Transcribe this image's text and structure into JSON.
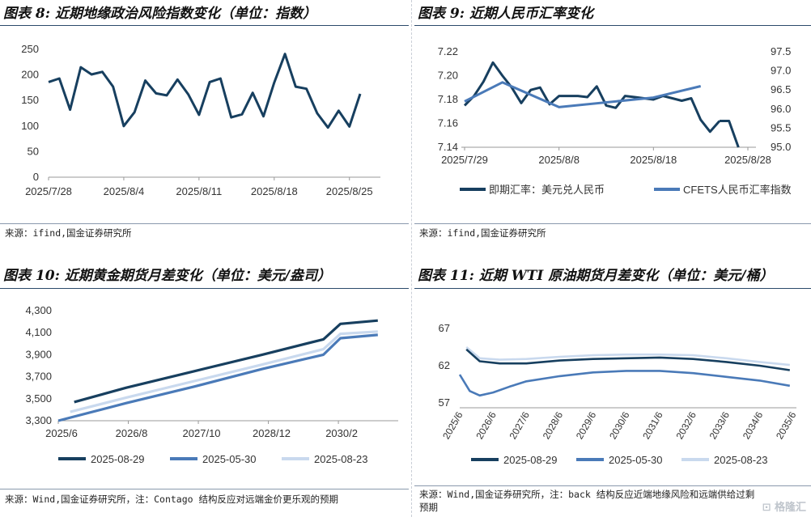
{
  "panels": {
    "p8": {
      "title": "图表 8: 近期地缘政治风险指数变化（单位：指数）",
      "source": "来源：ifind,国金证券研究所"
    },
    "p9": {
      "title": "图表 9: 近期人民币汇率变化",
      "source": "来源：ifind,国金证券研究所"
    },
    "p10": {
      "title": "图表 10: 近期黄金期货月差变化（单位：美元/盎司）",
      "source": "来源：Wind,国金证券研究所，注：Contago 结构反应对远端金价更乐观的预期"
    },
    "p11": {
      "title": "图表 11: 近期 WTI 原油期货月差变化（单位：美元/桶）",
      "source_line1": "来源：Wind,国金证券研究所，注：back 结构反应近端地缘风险和远端供给过剩",
      "source_line2": "预期"
    }
  },
  "watermark": "格隆汇",
  "colors": {
    "dark": "#173f5f",
    "mid": "#4a7ab8",
    "light": "#c9d9ee",
    "rule": "#2b4a6b"
  },
  "chart_data": [
    {
      "id": "chart8",
      "type": "line",
      "title": "近期地缘政治风险指数变化（单位：指数）",
      "ylim": [
        0,
        250
      ],
      "yticks": [
        "0",
        "50",
        "100",
        "150",
        "200",
        "250"
      ],
      "ytick_values": [
        0,
        50,
        100,
        150,
        200,
        250
      ],
      "x_tick_labels": [
        "2025/7/28",
        "2025/8/4",
        "2025/8/11",
        "2025/8/18",
        "2025/8/25"
      ],
      "x_tick_index": [
        0,
        7,
        14,
        21,
        28
      ],
      "series": [
        {
          "color": "#173f5f",
          "values": [
            186,
            193,
            132,
            215,
            201,
            206,
            177,
            100,
            127,
            189,
            164,
            160,
            191,
            162,
            122,
            186,
            193,
            117,
            123,
            165,
            119,
            185,
            241,
            177,
            173,
            125,
            97,
            130,
            99,
            163
          ]
        }
      ]
    },
    {
      "id": "chart9",
      "type": "line",
      "title": "近期人民币汇率变化",
      "ylim_left": [
        7.14,
        7.22
      ],
      "yticks_left": [
        "7.14",
        "7.16",
        "7.18",
        "7.20",
        "7.22"
      ],
      "ytick_values_left": [
        7.14,
        7.16,
        7.18,
        7.2,
        7.22
      ],
      "ylim_right": [
        95.0,
        97.5
      ],
      "yticks_right": [
        "95.0",
        "95.5",
        "96.0",
        "96.5",
        "97.0",
        "97.5"
      ],
      "ytick_values_right": [
        95.0,
        95.5,
        96.0,
        96.5,
        97.0,
        97.5
      ],
      "x_tick_labels": [
        "2025/7/29",
        "2025/8/8",
        "2025/8/18",
        "2025/8/28"
      ],
      "x_tick_index": [
        0,
        10,
        20,
        30
      ],
      "series": [
        {
          "name": "即期汇率：美元兑人民币",
          "axis": "left",
          "color": "#173f5f",
          "width": 3,
          "x": [
            0,
            1,
            2,
            3,
            4,
            5,
            6,
            7,
            8,
            9,
            10,
            11,
            12,
            13,
            14,
            15,
            16,
            17,
            18,
            19,
            20,
            21,
            22,
            23,
            24,
            25,
            26,
            27
          ],
          "values": [
            7.175,
            7.183,
            7.195,
            7.211,
            7.2,
            7.19,
            7.177,
            7.188,
            7.19,
            7.176,
            7.183,
            7.183,
            7.183,
            7.182,
            7.191,
            7.175,
            7.173,
            7.183,
            7.182,
            7.181,
            7.18,
            7.183,
            7.181,
            7.179,
            7.181,
            7.163,
            7.153,
            7.162
          ]
        },
        {
          "name": "",
          "axis": "left",
          "color": "#173f5f",
          "width": 3,
          "x": [
            27,
            28,
            29
          ],
          "values": [
            7.162,
            7.162,
            7.14
          ]
        },
        {
          "name": "CFETS人民币汇率指数",
          "axis": "right",
          "color": "#4a7ab8",
          "width": 3,
          "x": [
            0,
            4,
            10,
            20,
            25
          ],
          "values": [
            96.2,
            96.7,
            96.05,
            96.3,
            96.6
          ]
        }
      ]
    },
    {
      "id": "chart10",
      "type": "line",
      "title": "近期黄金期货月差变化（单位：美元/盎司）",
      "ylim": [
        3300,
        4300
      ],
      "yticks": [
        "3,300",
        "3,500",
        "3,700",
        "3,900",
        "4,100",
        "4,300"
      ],
      "ytick_values": [
        3300,
        3500,
        3700,
        3900,
        4100,
        4300
      ],
      "x_tick_labels": [
        "2025/6",
        "2026/8",
        "2027/10",
        "2028/12",
        "2030/2"
      ],
      "x_tick_pos": [
        0,
        0.206,
        0.412,
        0.618,
        0.824
      ],
      "series": [
        {
          "name": "2025-08-29",
          "color": "#173f5f",
          "width": 3.2,
          "x": [
            0.047,
            0.2,
            0.4,
            0.6,
            0.78,
            0.83,
            0.94
          ],
          "values": [
            3470,
            3600,
            3750,
            3900,
            4040,
            4180,
            4210
          ]
        },
        {
          "name": "2025-05-30",
          "color": "#4a7ab8",
          "width": 3.2,
          "x": [
            0.0,
            0.2,
            0.4,
            0.6,
            0.78,
            0.83,
            0.94
          ],
          "values": [
            3300,
            3460,
            3610,
            3770,
            3900,
            4050,
            4080
          ]
        },
        {
          "name": "2025-08-23",
          "color": "#c9d9ee",
          "width": 3.2,
          "x": [
            0.035,
            0.2,
            0.4,
            0.6,
            0.78,
            0.83,
            0.94
          ],
          "values": [
            3380,
            3510,
            3660,
            3810,
            3950,
            4090,
            4110
          ]
        }
      ]
    },
    {
      "id": "chart11",
      "type": "line",
      "title": "近期 WTI 原油期货月差变化（单位：美元/桶）",
      "ylim": [
        57,
        67
      ],
      "yticks": [
        "57",
        "62",
        "67"
      ],
      "ytick_values": [
        57,
        62,
        67
      ],
      "x_tick_labels": [
        "2025/6",
        "2026/6",
        "2027/6",
        "2028/6",
        "2029/6",
        "2030/6",
        "2031/6",
        "2032/6",
        "2033/6",
        "2034/6",
        "2035/6"
      ],
      "series": [
        {
          "name": "2025-08-29",
          "color": "#173f5f",
          "width": 2.6,
          "x": [
            0.2,
            0.6,
            1.2,
            2,
            3,
            4,
            5,
            6,
            7,
            8,
            9,
            9.9
          ],
          "values": [
            64.2,
            62.6,
            62.3,
            62.3,
            62.7,
            62.9,
            63.0,
            63.1,
            62.9,
            62.5,
            62.0,
            61.4
          ]
        },
        {
          "name": "2025-05-30",
          "color": "#4a7ab8",
          "width": 2.6,
          "x": [
            0.0,
            0.3,
            0.6,
            1.0,
            1.5,
            2,
            3,
            4,
            5,
            6,
            7,
            8,
            9,
            9.9
          ],
          "values": [
            60.8,
            58.6,
            58.0,
            58.4,
            59.2,
            59.9,
            60.6,
            61.1,
            61.3,
            61.3,
            61.0,
            60.5,
            60.0,
            59.3
          ]
        },
        {
          "name": "2025-08-23",
          "color": "#c9d9ee",
          "width": 2.6,
          "x": [
            0.2,
            0.6,
            1.2,
            2,
            3,
            4,
            5,
            6,
            7,
            8,
            9,
            9.9
          ],
          "values": [
            64.5,
            63.0,
            62.8,
            62.9,
            63.2,
            63.4,
            63.5,
            63.5,
            63.4,
            63.0,
            62.5,
            62.1
          ]
        }
      ]
    }
  ]
}
